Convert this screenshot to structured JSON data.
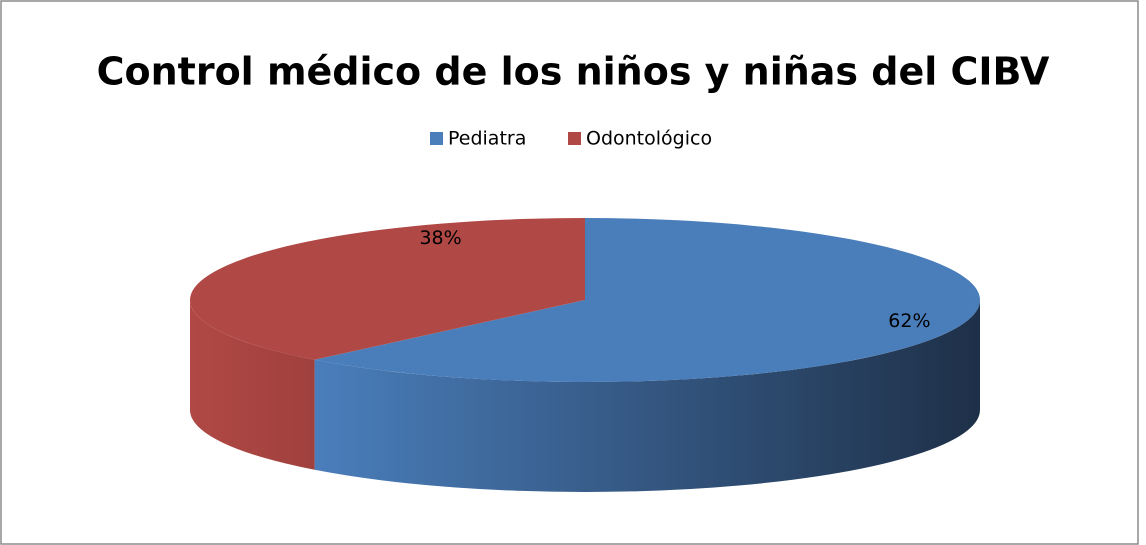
{
  "chart_data": {
    "type": "pie",
    "title": "Control médico de los niños y niñas del CIBV",
    "categories": [
      "Pediatra",
      "Odontológico"
    ],
    "values": [
      62,
      38
    ],
    "value_labels": [
      "62%",
      "38%"
    ],
    "colors": [
      "#4a7ebb",
      "#b04945"
    ],
    "legend": "top"
  }
}
